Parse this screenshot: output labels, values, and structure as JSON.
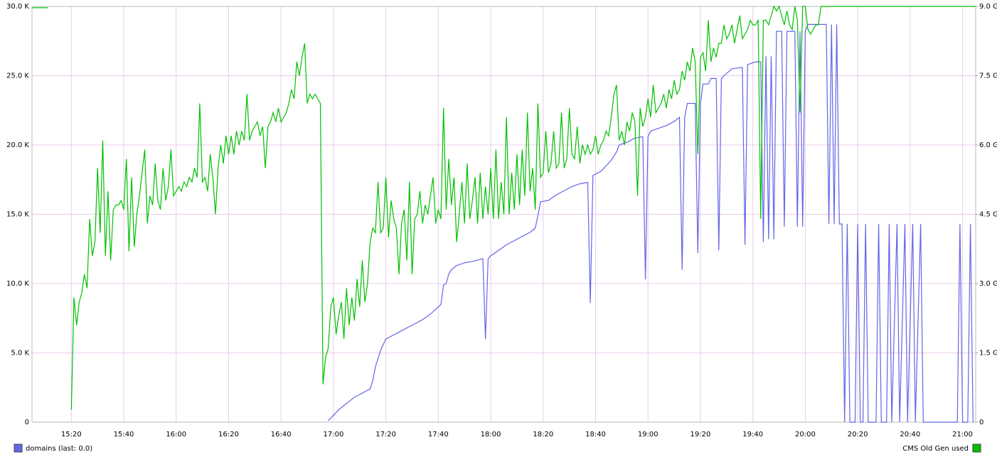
{
  "chart_data": {
    "type": "line",
    "xlim": [
      "15:05",
      "21:05"
    ],
    "xticks": [
      "15:20",
      "15:40",
      "16:00",
      "16:20",
      "16:40",
      "17:00",
      "17:20",
      "17:40",
      "18:00",
      "18:20",
      "18:40",
      "19:00",
      "19:20",
      "19:40",
      "20:00",
      "20:20",
      "20:40",
      "21:00"
    ],
    "ylim": [
      0,
      30
    ],
    "yticks": [
      0,
      {
        "value": 5,
        "label": "5.0 K"
      },
      {
        "value": 10,
        "label": "10.0 K"
      },
      {
        "value": 15,
        "label": "15.0 K"
      },
      {
        "value": 20,
        "label": "20.0 K"
      },
      {
        "value": 25,
        "label": "25.0 K"
      },
      {
        "value": 30,
        "label": "30.0 K"
      }
    ],
    "y2lim": [
      0,
      9
    ],
    "y2ticks": [
      0,
      {
        "value": 1.5,
        "label": "1.5 G"
      },
      {
        "value": 3,
        "label": "3.0 G"
      },
      {
        "value": 4.5,
        "label": "4.5 G"
      },
      {
        "value": 6,
        "label": "6.0 G"
      },
      {
        "value": 7.5,
        "label": "7.5 G"
      },
      {
        "value": 9,
        "label": "9.0 G"
      }
    ],
    "grid": true,
    "series": [
      {
        "name": "domains (last: 0.0)",
        "color": "#6464e8",
        "legend": "left",
        "x": [
          "16:58",
          "16:59",
          "17:00",
          "17:02",
          "17:04",
          "17:06",
          "17:08",
          "17:10",
          "17:12",
          "17:14",
          "17:15",
          "17:16",
          "17:17",
          "17:18",
          "17:19",
          "17:20",
          "17:22",
          "17:25",
          "17:28",
          "17:31",
          "17:34",
          "17:37",
          "17:40",
          "17:41",
          "17:42",
          "17:43",
          "17:44",
          "17:45",
          "17:47",
          "17:50",
          "17:53",
          "17:55",
          "17:57",
          "17:58",
          "17:59",
          "18:00",
          "18:03",
          "18:06",
          "18:09",
          "18:12",
          "18:15",
          "18:17",
          "18:18",
          "18:19",
          "18:22",
          "18:25",
          "18:28",
          "18:31",
          "18:34",
          "18:37",
          "18:38",
          "18:39",
          "18:42",
          "18:44",
          "18:46",
          "18:48",
          "18:49",
          "18:52",
          "18:55",
          "18:58",
          "18:59",
          "19:00",
          "19:01",
          "19:04",
          "19:07",
          "19:10",
          "19:12",
          "19:13",
          "19:14",
          "19:15",
          "19:18",
          "19:19",
          "19:20",
          "19:21",
          "19:23",
          "19:24",
          "19:26",
          "19:27",
          "19:28",
          "19:29",
          "19:32",
          "19:36",
          "19:37",
          "19:38",
          "19:41",
          "19:43",
          "19:44",
          "19:45",
          "19:46",
          "19:47",
          "19:48",
          "19:49",
          "19:51",
          "19:52",
          "19:53",
          "19:56",
          "19:57",
          "19:58",
          "19:59",
          "20:00",
          "20:01",
          "20:08",
          "20:09",
          "20:10",
          "20:11",
          "20:12",
          "20:13",
          "20:14",
          "20:15",
          "20:16",
          "20:17",
          "20:19",
          "20:20",
          "20:21",
          "20:22",
          "20:23",
          "20:24",
          "20:27",
          "20:28",
          "20:29",
          "20:31",
          "20:32",
          "20:33",
          "20:35",
          "20:36",
          "20:38",
          "20:39",
          "20:41",
          "20:42",
          "20:44",
          "20:45",
          "20:58",
          "20:59",
          "21:00",
          "21:02",
          "21:03",
          "21:04"
        ],
        "values": [
          0.1,
          0.3,
          0.5,
          0.9,
          1.2,
          1.5,
          1.8,
          2.0,
          2.2,
          2.4,
          3.0,
          4.0,
          4.6,
          5.2,
          5.6,
          6.0,
          6.2,
          6.5,
          6.8,
          7.1,
          7.4,
          7.8,
          8.3,
          8.5,
          9.9,
          10.0,
          10.7,
          11.0,
          11.3,
          11.5,
          11.6,
          11.7,
          11.8,
          6.0,
          11.8,
          12.0,
          12.4,
          12.8,
          13.1,
          13.4,
          13.7,
          14.0,
          14.9,
          15.9,
          16.0,
          16.4,
          16.7,
          17.0,
          17.2,
          17.3,
          8.6,
          17.8,
          18.1,
          18.5,
          18.9,
          19.5,
          20.0,
          20.2,
          20.5,
          20.6,
          10.3,
          20.6,
          21.0,
          21.2,
          21.4,
          21.7,
          22.0,
          11.0,
          22.0,
          23.0,
          23.0,
          12.2,
          23.0,
          24.4,
          24.4,
          24.8,
          24.8,
          12.4,
          24.8,
          25.0,
          25.5,
          25.6,
          12.8,
          25.8,
          26.0,
          26.0,
          13.0,
          26.4,
          13.2,
          26.4,
          13.2,
          28.2,
          28.2,
          14.1,
          28.2,
          28.2,
          14.1,
          28.2,
          14.1,
          28.2,
          28.7,
          28.7,
          14.3,
          28.7,
          14.3,
          28.7,
          14.3,
          14.3,
          0,
          14.3,
          0,
          0,
          14.3,
          0,
          0,
          14.3,
          0,
          0,
          14.3,
          0,
          0,
          14.3,
          0,
          14.3,
          0,
          14.3,
          0,
          14.3,
          0,
          14.3,
          0,
          0,
          14.3,
          0,
          0,
          14.3,
          0
        ]
      },
      {
        "name": "CMS Old Gen used",
        "color": "#00c000",
        "axis": "y2",
        "legend": "right",
        "x": [
          "15:05",
          "15:11",
          "15:15",
          "15:20",
          "15:21",
          "15:22",
          "15:23",
          "15:24",
          "15:25",
          "15:26",
          "15:27",
          "15:28",
          "15:29",
          "15:30",
          "15:31",
          "15:32",
          "15:33",
          "15:34",
          "15:35",
          "15:36",
          "15:37",
          "15:38",
          "15:39",
          "15:40",
          "15:41",
          "15:42",
          "15:43",
          "15:44",
          "15:45",
          "15:46",
          "15:47",
          "15:48",
          "15:49",
          "15:50",
          "15:51",
          "15:52",
          "15:53",
          "15:54",
          "15:55",
          "15:56",
          "15:57",
          "15:58",
          "15:59",
          "16:00",
          "16:01",
          "16:02",
          "16:03",
          "16:04",
          "16:05",
          "16:06",
          "16:07",
          "16:08",
          "16:09",
          "16:10",
          "16:11",
          "16:12",
          "16:13",
          "16:14",
          "16:15",
          "16:16",
          "16:17",
          "16:18",
          "16:19",
          "16:20",
          "16:21",
          "16:22",
          "16:23",
          "16:24",
          "16:25",
          "16:26",
          "16:27",
          "16:28",
          "16:29",
          "16:30",
          "16:31",
          "16:32",
          "16:33",
          "16:34",
          "16:35",
          "16:36",
          "16:37",
          "16:38",
          "16:39",
          "16:40",
          "16:41",
          "16:42",
          "16:43",
          "16:44",
          "16:45",
          "16:46",
          "16:47",
          "16:48",
          "16:49",
          "16:50",
          "16:51",
          "16:52",
          "16:53",
          "16:54",
          "16:55",
          "16:56",
          "16:57",
          "16:58",
          "16:59",
          "17:00",
          "17:01",
          "17:02",
          "17:03",
          "17:04",
          "17:05",
          "17:06",
          "17:07",
          "17:08",
          "17:09",
          "17:10",
          "17:11",
          "17:12",
          "17:13",
          "17:14",
          "17:15",
          "17:16",
          "17:17",
          "17:18",
          "17:19",
          "17:20",
          "17:21",
          "17:22",
          "17:23",
          "17:24",
          "17:25",
          "17:26",
          "17:27",
          "17:28",
          "17:29",
          "17:30",
          "17:31",
          "17:32",
          "17:33",
          "17:34",
          "17:35",
          "17:36",
          "17:37",
          "17:38",
          "17:39",
          "17:40",
          "17:41",
          "17:42",
          "17:43",
          "17:44",
          "17:45",
          "17:46",
          "17:47",
          "17:48",
          "17:49",
          "17:50",
          "17:51",
          "17:52",
          "17:53",
          "17:54",
          "17:55",
          "17:56",
          "17:57",
          "17:58",
          "17:59",
          "18:00",
          "18:01",
          "18:02",
          "18:03",
          "18:04",
          "18:05",
          "18:06",
          "18:07",
          "18:08",
          "18:09",
          "18:10",
          "18:11",
          "18:12",
          "18:13",
          "18:14",
          "18:15",
          "18:16",
          "18:17",
          "18:18",
          "18:19",
          "18:20",
          "18:21",
          "18:22",
          "18:23",
          "18:24",
          "18:25",
          "18:26",
          "18:27",
          "18:28",
          "18:29",
          "18:30",
          "18:31",
          "18:32",
          "18:33",
          "18:34",
          "18:35",
          "18:36",
          "18:37",
          "18:38",
          "18:39",
          "18:40",
          "18:41",
          "18:42",
          "18:43",
          "18:44",
          "18:45",
          "18:46",
          "18:47",
          "18:48",
          "18:49",
          "18:50",
          "18:51",
          "18:52",
          "18:53",
          "18:54",
          "18:55",
          "18:56",
          "18:57",
          "18:58",
          "18:59",
          "19:00",
          "19:01",
          "19:02",
          "19:03",
          "19:04",
          "19:05",
          "19:06",
          "19:07",
          "19:08",
          "19:09",
          "19:10",
          "19:11",
          "19:12",
          "19:13",
          "19:14",
          "19:15",
          "19:16",
          "19:17",
          "19:18",
          "19:19",
          "19:20",
          "19:21",
          "19:22",
          "19:23",
          "19:24",
          "19:25",
          "19:26",
          "19:27",
          "19:28",
          "19:29",
          "19:30",
          "19:31",
          "19:32",
          "19:33",
          "19:34",
          "19:35",
          "19:36",
          "19:37",
          "19:38",
          "19:39",
          "19:40",
          "19:41",
          "19:42",
          "19:43",
          "19:44",
          "19:45",
          "19:46",
          "19:47",
          "19:48",
          "19:49",
          "19:50",
          "19:51",
          "19:52",
          "19:53",
          "19:54",
          "19:55",
          "19:56",
          "19:57",
          "19:58",
          "19:59",
          "20:00",
          "20:01",
          "20:02",
          "20:03",
          "20:04",
          "20:05",
          "20:06",
          "20:07",
          "21:05"
        ],
        "values": [
          8.97,
          8.97,
          null,
          0.27,
          2.7,
          2.1,
          2.6,
          2.8,
          3.2,
          2.9,
          4.4,
          3.6,
          3.9,
          5.5,
          4.1,
          6.1,
          3.6,
          5.0,
          3.5,
          4.6,
          4.7,
          4.7,
          4.8,
          4.6,
          5.7,
          3.7,
          5.3,
          3.8,
          4.5,
          4.9,
          5.4,
          5.9,
          4.3,
          4.9,
          4.7,
          5.6,
          4.8,
          4.6,
          5.5,
          4.8,
          5.1,
          5.9,
          4.9,
          5.0,
          5.1,
          5.0,
          5.2,
          5.1,
          5.3,
          5.2,
          5.5,
          5.3,
          6.9,
          5.2,
          5.3,
          5.0,
          5.8,
          5.3,
          4.5,
          5.5,
          6.0,
          5.6,
          6.2,
          5.8,
          6.2,
          5.8,
          6.3,
          6.0,
          6.3,
          6.1,
          7.1,
          6.1,
          6.3,
          6.4,
          6.5,
          6.2,
          6.4,
          5.5,
          6.4,
          6.5,
          6.7,
          6.5,
          6.8,
          6.5,
          6.6,
          6.7,
          6.9,
          7.2,
          7.0,
          7.8,
          7.5,
          7.9,
          8.2,
          6.9,
          7.1,
          7.0,
          7.1,
          7.0,
          6.9,
          0.82,
          1.4,
          1.6,
          2.5,
          2.7,
          1.9,
          2.3,
          2.6,
          1.8,
          2.9,
          2.1,
          2.7,
          2.2,
          3.1,
          2.5,
          3.5,
          2.6,
          3.0,
          3.9,
          4.2,
          4.1,
          5.2,
          4.1,
          4.2,
          5.3,
          4.0,
          4.8,
          4.4,
          4.2,
          3.2,
          4.3,
          4.6,
          3.5,
          5.2,
          3.2,
          4.4,
          4.5,
          5.0,
          4.3,
          4.7,
          4.5,
          4.9,
          5.3,
          4.3,
          4.6,
          4.4,
          6.8,
          4.6,
          5.7,
          4.7,
          5.3,
          3.9,
          4.5,
          5.2,
          4.3,
          5.6,
          4.4,
          4.8,
          5.3,
          4.3,
          5.4,
          4.4,
          5.1,
          4.5,
          5.5,
          4.4,
          5.9,
          4.4,
          5.2,
          4.5,
          6.6,
          4.5,
          5.4,
          4.6,
          5.8,
          4.7,
          5.9,
          4.9,
          6.7,
          5.0,
          5.5,
          4.6,
          6.9,
          5.3,
          5.4,
          6.3,
          5.4,
          5.6,
          6.3,
          5.5,
          5.6,
          6.7,
          5.5,
          5.7,
          6.8,
          5.8,
          5.7,
          6.4,
          5.6,
          6.0,
          5.8,
          6.0,
          5.8,
          5.9,
          6.2,
          5.8,
          6.0,
          6.1,
          6.3,
          6.2,
          6.6,
          7.1,
          7.3,
          6.1,
          6.3,
          6.0,
          6.5,
          6.3,
          6.7,
          6.5,
          4.9,
          6.8,
          6.4,
          6.6,
          7.0,
          6.6,
          7.3,
          6.7,
          6.8,
          6.9,
          7.1,
          6.8,
          7.2,
          7.0,
          7.4,
          7.1,
          7.2,
          7.6,
          7.4,
          7.8,
          7.6,
          8.1,
          7.8,
          5.8,
          7.9,
          8.0,
          7.6,
          8.7,
          7.8,
          8.1,
          7.9,
          8.2,
          8.2,
          8.6,
          8.3,
          8.4,
          8.6,
          8.2,
          8.5,
          8.8,
          8.3,
          8.4,
          8.5,
          8.7,
          8.6,
          8.6,
          8.7,
          4.4,
          8.7,
          8.7,
          8.6,
          8.8,
          9.0,
          8.9,
          9.0,
          8.8,
          8.6,
          8.9,
          8.6,
          8.5,
          9.0,
          8.7,
          6.7,
          9.0,
          9.0,
          8.5,
          8.4,
          8.5,
          8.6,
          8.6,
          9.0,
          9.0,
          9.0
        ]
      }
    ]
  }
}
